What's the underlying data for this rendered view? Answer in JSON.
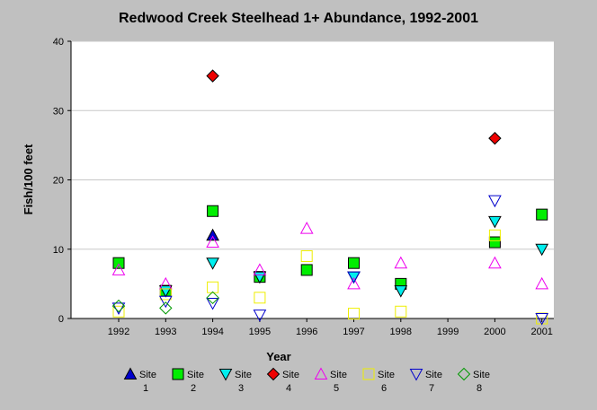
{
  "chart_data": {
    "type": "scatter",
    "title": "Redwood Creek Steelhead 1+ Abundance, 1992-2001",
    "xlabel": "Year",
    "ylabel": "Fish/100 feet",
    "x": [
      1992,
      1993,
      1994,
      1995,
      1996,
      1997,
      1998,
      1999,
      2000,
      2001
    ],
    "x_ticks": [
      "1992",
      "1993",
      "1994",
      "1995",
      "1996",
      "1997",
      "1998",
      "1999",
      "2000",
      "2001"
    ],
    "y_ticks": [
      "0",
      "10",
      "20",
      "30",
      "40"
    ],
    "ylim": [
      0,
      40
    ],
    "grid": "horizontal",
    "legend_position": "bottom",
    "series": [
      {
        "name": "Site 1",
        "label_line1": "Site",
        "label_line2": "1",
        "marker": "triangle-up",
        "filled": true,
        "color": "#0000cc",
        "values": [
          null,
          null,
          12,
          null,
          null,
          null,
          null,
          null,
          null,
          null
        ]
      },
      {
        "name": "Site 2",
        "label_line1": "Site",
        "label_line2": "2",
        "marker": "square",
        "filled": true,
        "color": "#00ee00",
        "values": [
          8,
          4,
          15.5,
          6,
          7,
          8,
          5,
          null,
          11,
          15
        ]
      },
      {
        "name": "Site 3",
        "label_line1": "Site",
        "label_line2": "3",
        "marker": "triangle-down",
        "filled": true,
        "color": "#00eeee",
        "values": [
          null,
          4,
          8,
          6,
          null,
          6,
          4,
          null,
          14,
          10
        ]
      },
      {
        "name": "Site 4",
        "label_line1": "Site",
        "label_line2": "4",
        "marker": "diamond",
        "filled": true,
        "color": "#ee0000",
        "values": [
          null,
          null,
          35,
          null,
          null,
          null,
          null,
          null,
          26,
          null
        ]
      },
      {
        "name": "Site 5",
        "label_line1": "Site",
        "label_line2": "5",
        "marker": "triangle-up",
        "filled": false,
        "color": "#ee00ee",
        "values": [
          7,
          5,
          11,
          7,
          13,
          5,
          8,
          null,
          8,
          5
        ]
      },
      {
        "name": "Site 6",
        "label_line1": "Site",
        "label_line2": "6",
        "marker": "square",
        "filled": false,
        "color": "#eeee00",
        "values": [
          1,
          3.5,
          4.5,
          3,
          9,
          0.7,
          1,
          null,
          12,
          0
        ]
      },
      {
        "name": "Site 7",
        "label_line1": "Site",
        "label_line2": "7",
        "marker": "triangle-down",
        "filled": false,
        "color": "#0000cc",
        "values": [
          1.5,
          2.5,
          2.2,
          0.5,
          null,
          6,
          null,
          null,
          17,
          0
        ]
      },
      {
        "name": "Site 8",
        "label_line1": "Site",
        "label_line2": "8",
        "marker": "diamond",
        "filled": false,
        "color": "#009900",
        "values": [
          1.8,
          1.5,
          3,
          null,
          null,
          null,
          null,
          null,
          null,
          null
        ]
      }
    ]
  }
}
